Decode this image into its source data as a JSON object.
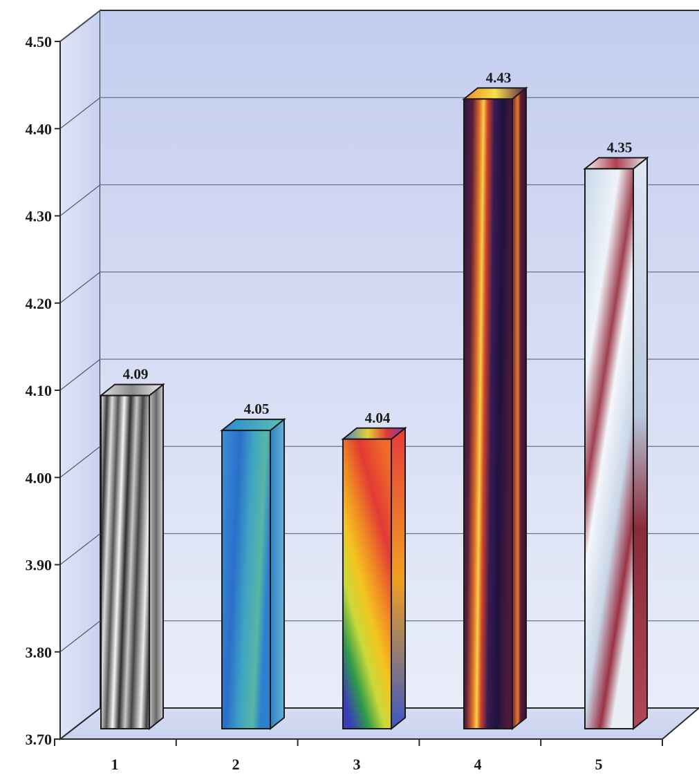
{
  "chart_data": {
    "type": "bar",
    "categories": [
      "1",
      "2",
      "3",
      "4",
      "5"
    ],
    "values": [
      4.09,
      4.05,
      4.04,
      4.43,
      4.35
    ],
    "value_labels": [
      "4.09",
      "4.05",
      "4.04",
      "4.43",
      "4.35"
    ],
    "ylim": [
      3.7,
      4.5
    ],
    "yticks": [
      "3.70",
      "3.80",
      "3.90",
      "4.00",
      "4.10",
      "4.20",
      "4.30",
      "4.40",
      "4.50"
    ],
    "grid": true,
    "three_d": true,
    "bar_styles": [
      "silver-striped",
      "blue-teal",
      "rainbow",
      "dark-fire",
      "white-maroon"
    ],
    "colors": {
      "wall_top": "#c9d2f0",
      "wall_bottom": "#e6ebf8",
      "floor": "#d3daf2",
      "axis": "#222222"
    }
  }
}
